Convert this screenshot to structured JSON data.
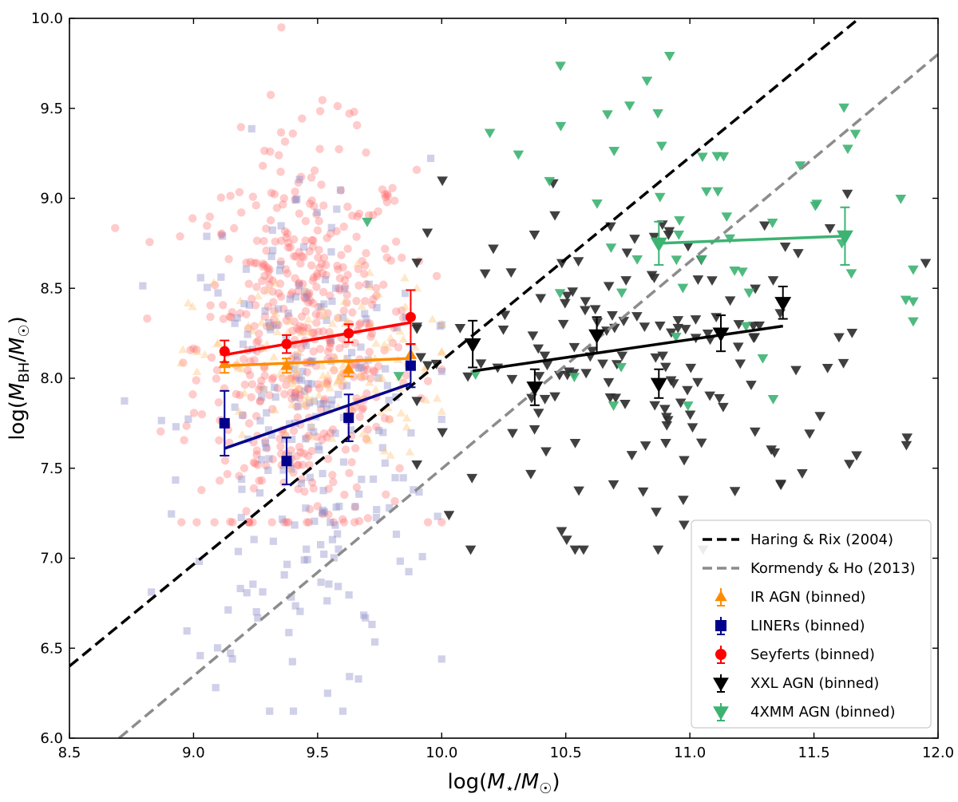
{
  "chart_data": {
    "type": "scatter",
    "xlabel": "log(M⋆/M☉)",
    "ylabel": "log(M_BH/M☉)",
    "xlim": [
      8.5,
      12.0
    ],
    "ylim": [
      6.0,
      10.0
    ],
    "xticks": [
      "8.5",
      "9.0",
      "9.5",
      "10.0",
      "10.5",
      "11.0",
      "11.5",
      "12.0"
    ],
    "yticks": [
      "6.0",
      "6.5",
      "7.0",
      "7.5",
      "8.0",
      "8.5",
      "9.0",
      "9.5",
      "10.0"
    ],
    "legend_position": "bottom-right",
    "relations": [
      {
        "name": "Haring & Rix (2004)",
        "color": "#000000",
        "dash": "dashed",
        "points": [
          [
            8.5,
            6.4
          ],
          [
            12.0,
            10.36
          ]
        ]
      },
      {
        "name": "Kormendy & Ho (2013)",
        "color": "#8c8c8c",
        "dash": "dashed",
        "points": [
          [
            8.7,
            6.0
          ],
          [
            12.0,
            9.8
          ]
        ]
      }
    ],
    "binned": [
      {
        "name": "IR AGN (binned)",
        "color": "#ff8c00",
        "marker": "triangle-up",
        "x": [
          9.125,
          9.375,
          9.625,
          9.875
        ],
        "y": [
          8.08,
          8.07,
          8.05,
          8.13
        ],
        "err": [
          0.05,
          0.04,
          0.04,
          0.06
        ],
        "fit": [
          [
            9.125,
            8.07
          ],
          [
            9.875,
            8.11
          ]
        ]
      },
      {
        "name": "LINERs (binned)",
        "color": "#00008b",
        "marker": "square",
        "x": [
          9.125,
          9.375,
          9.625,
          9.875
        ],
        "y": [
          7.75,
          7.54,
          7.78,
          8.07
        ],
        "err": [
          0.18,
          0.13,
          0.13,
          0.12
        ],
        "fit": [
          [
            9.125,
            7.61
          ],
          [
            9.875,
            7.97
          ]
        ]
      },
      {
        "name": "Seyferts (binned)",
        "color": "#ff0000",
        "marker": "circle",
        "x": [
          9.125,
          9.375,
          9.625,
          9.875
        ],
        "y": [
          8.15,
          8.19,
          8.25,
          8.34
        ],
        "err": [
          0.06,
          0.05,
          0.05,
          0.15
        ],
        "fit": [
          [
            9.125,
            8.13
          ],
          [
            9.875,
            8.31
          ]
        ]
      },
      {
        "name": "XXL AGN (binned)",
        "color": "#000000",
        "marker": "triangle-down",
        "x": [
          10.125,
          10.375,
          10.625,
          10.875,
          11.125,
          11.375
        ],
        "y": [
          8.19,
          7.95,
          8.24,
          7.97,
          8.25,
          8.42
        ],
        "err": [
          0.13,
          0.1,
          0.1,
          0.08,
          0.1,
          0.09
        ],
        "fit": [
          [
            10.125,
            8.04
          ],
          [
            11.375,
            8.29
          ]
        ]
      },
      {
        "name": "4XMM AGN (binned)",
        "color": "#3cb371",
        "marker": "triangle-down",
        "x": [
          10.875,
          11.625
        ],
        "y": [
          8.75,
          8.79
        ],
        "err": [
          0.12,
          0.16
        ],
        "fit": [
          [
            10.875,
            8.75
          ],
          [
            11.625,
            8.79
          ]
        ]
      }
    ],
    "individual": [
      {
        "name": "Seyferts",
        "color": "#ff6b6b",
        "marker": "circle",
        "x_range": [
          8.6,
          10.0
        ],
        "y_range": [
          7.2,
          9.95
        ],
        "center": [
          9.45,
          8.2
        ],
        "spread": [
          0.22,
          0.55
        ],
        "count": 520
      },
      {
        "name": "LINERs",
        "color": "#8a8ac8",
        "marker": "square",
        "x_range": [
          8.7,
          10.0
        ],
        "y_range": [
          6.15,
          9.65
        ],
        "center": [
          9.45,
          7.7
        ],
        "spread": [
          0.25,
          0.75
        ],
        "count": 230
      },
      {
        "name": "IR AGN",
        "color": "#ffc277",
        "marker": "triangle-up",
        "x_range": [
          8.95,
          10.0
        ],
        "y_range": [
          7.4,
          8.9
        ],
        "center": [
          9.5,
          8.05
        ],
        "spread": [
          0.25,
          0.25
        ],
        "count": 140
      },
      {
        "name": "XXL AGN",
        "color": "#303030",
        "marker": "triangle-down",
        "x_range": [
          9.9,
          11.95
        ],
        "y_range": [
          7.05,
          9.1
        ],
        "center": [
          10.8,
          8.1
        ],
        "spread": [
          0.5,
          0.45
        ],
        "count": 170
      },
      {
        "name": "4XMM AGN",
        "color": "#3cb371",
        "marker": "triangle-down",
        "x_range": [
          9.7,
          11.9
        ],
        "y_range": [
          7.85,
          9.85
        ],
        "center": [
          11.1,
          8.8
        ],
        "spread": [
          0.45,
          0.45
        ],
        "count": 58
      }
    ]
  }
}
